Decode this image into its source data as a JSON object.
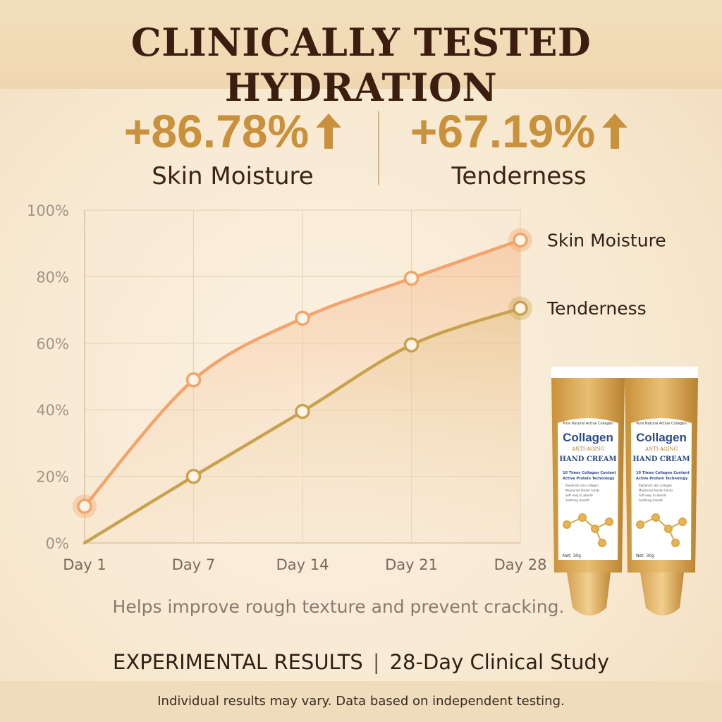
{
  "title": "CLINICALLY TESTED HYDRATION",
  "stats": [
    {
      "value": "+86.78%",
      "label": "Skin Moisture"
    },
    {
      "value": "+67.19%",
      "label": "Tenderness"
    }
  ],
  "colors": {
    "moisture": "#f2a46a",
    "tenderness": "#c9a24e",
    "accent": "#c9913b",
    "grid": "#e6d4b8"
  },
  "chart_data": {
    "type": "line",
    "x": [
      "Day 1",
      "Day 7",
      "Day 14",
      "Day 21",
      "Day 28"
    ],
    "y_ticks": [
      "0%",
      "20%",
      "40%",
      "60%",
      "80%",
      "100%"
    ],
    "ylim": [
      0,
      100
    ],
    "grid": true,
    "legend": "right",
    "series": [
      {
        "name": "Skin Moisture",
        "values": [
          11,
          49,
          67.5,
          79.5,
          91
        ]
      },
      {
        "name": "Tenderness",
        "values": [
          0,
          20,
          39.5,
          59.5,
          70.5
        ]
      }
    ]
  },
  "caption": "Helps improve rough texture and prevent cracking.",
  "results": {
    "left": "EXPERIMENTAL RESULTS",
    "divider": "|",
    "right": "28-Day Clinical Study"
  },
  "footer": "Individual results may vary. Data based on independent testing.",
  "product": {
    "brand": "Collagen",
    "top_text": "Pure Natural Active Collagen",
    "subtitle": "ANTI-AGING",
    "name": "HAND CREAM",
    "features": [
      "10 Times Collagen Content",
      "Active Protein Technology"
    ],
    "bullets": [
      "Replenish skin collagen",
      "Moisturize tender hands",
      "Soft easy to absorb",
      "Soothing smooth"
    ],
    "net": "Net: 30g"
  }
}
